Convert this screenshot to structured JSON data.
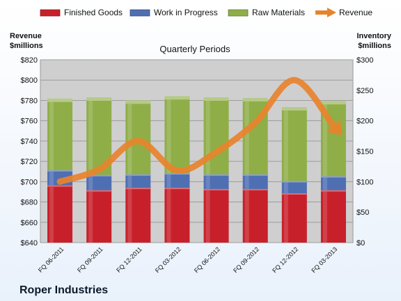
{
  "chart_data": {
    "type": "bar",
    "subtype": "stacked-bar-with-line",
    "title": "Quarterly Periods",
    "company": "Roper Industries",
    "left_axis_title": [
      "Revenue",
      "$millions"
    ],
    "right_axis_title": [
      "Inventory",
      "$millions"
    ],
    "categories": [
      "FQ 06-2011",
      "FQ 09-2011",
      "FQ 12-2011",
      "FQ 03-2012",
      "FQ 06-2012",
      "FQ 09-2012",
      "FQ 12-2012",
      "FQ 03-2013"
    ],
    "bar_series": [
      {
        "name": "Finished Goods",
        "color": "#c8202a",
        "values": [
          94,
          86,
          90,
          90,
          88,
          88,
          81,
          86
        ]
      },
      {
        "name": "Work in Progress",
        "color": "#4f6fb3",
        "values": [
          25,
          25,
          22,
          24,
          24,
          24,
          20,
          23
        ]
      },
      {
        "name": "Raw Materials",
        "color": "#8fae48",
        "values": [
          114,
          124,
          118,
          123,
          123,
          122,
          118,
          120
        ]
      }
    ],
    "line_series": {
      "name": "Revenue",
      "color": "#e8832c",
      "values": [
        700,
        712,
        740,
        711,
        729,
        758,
        800,
        755
      ]
    },
    "left_axis": {
      "min": 640,
      "max": 820,
      "step": 20,
      "tick_labels": [
        "$640",
        "$660",
        "$680",
        "$700",
        "$720",
        "$740",
        "$760",
        "$780",
        "$800",
        "$820"
      ]
    },
    "right_axis": {
      "min": 0,
      "max": 300,
      "step": 50,
      "tick_labels": [
        "$0",
        "$50",
        "$100",
        "$150",
        "$200",
        "$250",
        "$300"
      ]
    },
    "grid": true,
    "legend_position": "top"
  }
}
